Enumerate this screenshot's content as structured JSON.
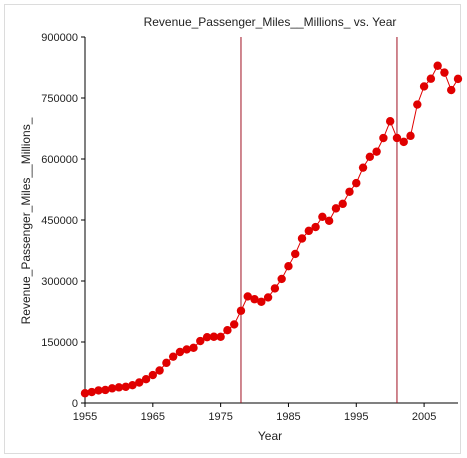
{
  "chart_data": {
    "type": "line",
    "title": "Revenue_Passenger_Miles__Millions_ vs. Year",
    "xlabel": "Year",
    "ylabel": "Revenue_Passenger_Miles__Millions_",
    "xlim": [
      1955,
      2010
    ],
    "ylim": [
      0,
      900000
    ],
    "xticks": [
      1955,
      1965,
      1975,
      1985,
      1995,
      2005
    ],
    "yticks": [
      0,
      150000,
      300000,
      450000,
      600000,
      750000,
      900000
    ],
    "grid": false,
    "reference_lines_x": [
      1978,
      2001
    ],
    "colors": {
      "series": "#e00000",
      "marker": "#e00000",
      "reference_line": "#a01020",
      "axis": "#000000"
    },
    "series": [
      {
        "x": [
          1955,
          1956,
          1957,
          1958,
          1959,
          1960,
          1961,
          1962,
          1963,
          1964,
          1965,
          1966,
          1967,
          1968,
          1969,
          1970,
          1971,
          1972,
          1973,
          1974,
          1975,
          1976,
          1977,
          1978,
          1979,
          1980,
          1981,
          1982,
          1983,
          1984,
          1985,
          1986,
          1987,
          1988,
          1989,
          1990,
          1991,
          1992,
          1993,
          1994,
          1995,
          1996,
          1997,
          1998,
          1999,
          2000,
          2001,
          2002,
          2003,
          2004,
          2005,
          2006,
          2007,
          2008,
          2009,
          2010
        ],
        "values": [
          24000,
          27000,
          31000,
          32000,
          36000,
          38500,
          39800,
          43800,
          50400,
          58500,
          68700,
          79900,
          98700,
          113900,
          125400,
          131700,
          135700,
          152400,
          161900,
          162900,
          162800,
          179000,
          193200,
          226800,
          262000,
          255200,
          248900,
          259600,
          281800,
          305100,
          336400,
          366500,
          404500,
          423300,
          432700,
          457900,
          448000,
          478600,
          489700,
          519400,
          540700,
          578700,
          605400,
          618100,
          651600,
          692800,
          651700,
          642100,
          656900,
          733900,
          778400,
          797400,
          829300,
          812400,
          769500,
          797000
        ]
      }
    ]
  }
}
